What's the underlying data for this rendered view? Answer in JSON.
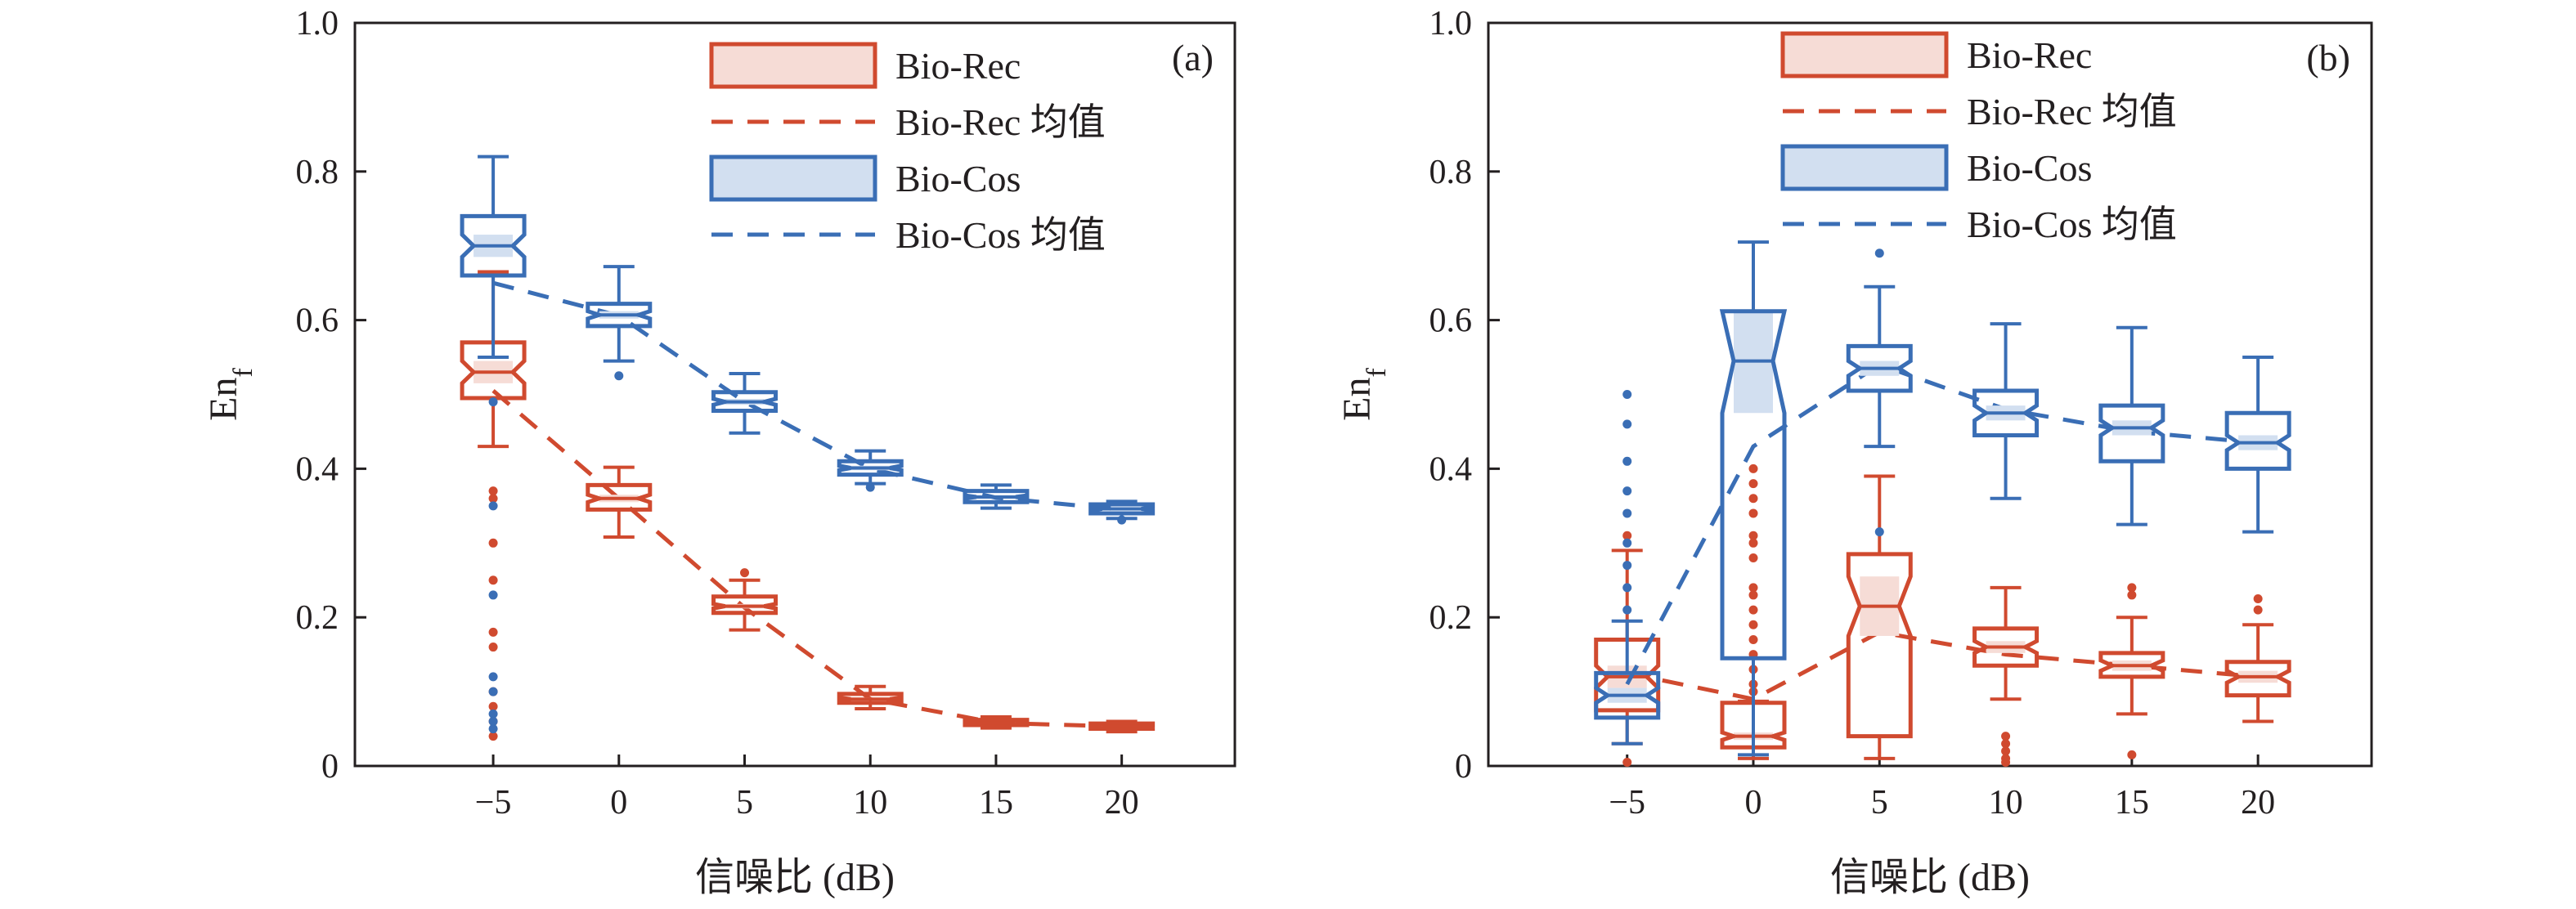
{
  "colors": {
    "rec": "#d04a2f",
    "rec_fill": "#f6dcd6",
    "cos": "#3a6eb5",
    "cos_fill": "#d2dff0",
    "axis": "#231f20"
  },
  "chart_data": [
    {
      "type": "box",
      "panel_label": "(a)",
      "xlabel": "信噪比 (dB)",
      "ylabel": "En",
      "ylabel_sub": "f",
      "xlim": [
        -10.5,
        24.5
      ],
      "ylim": [
        0,
        1.0
      ],
      "xticks": [
        "−5",
        "0",
        "5",
        "10",
        "15",
        "20"
      ],
      "yticks": [
        "0",
        "0.2",
        "0.4",
        "0.6",
        "0.8",
        "1.0"
      ],
      "legend": [
        "Bio-Rec",
        "Bio-Rec 均值",
        "Bio-Cos",
        "Bio-Cos 均值"
      ],
      "legend_position": "top-right",
      "series": [
        {
          "name": "Bio-Rec",
          "color_key": "rec",
          "boxes": [
            {
              "x": -5,
              "q1": 0.495,
              "median": 0.53,
              "q3": 0.57,
              "wlo": 0.43,
              "whi": 0.665,
              "notch_lo": 0.515,
              "notch_hi": 0.545,
              "outliers": [
                0.37,
                0.36,
                0.3,
                0.25,
                0.18,
                0.16,
                0.1,
                0.08,
                0.06,
                0.04
              ]
            },
            {
              "x": 0,
              "q1": 0.345,
              "median": 0.36,
              "q3": 0.378,
              "wlo": 0.308,
              "whi": 0.402,
              "notch_lo": 0.355,
              "notch_hi": 0.365,
              "outliers": []
            },
            {
              "x": 5,
              "q1": 0.206,
              "median": 0.215,
              "q3": 0.228,
              "wlo": 0.183,
              "whi": 0.25,
              "notch_lo": 0.212,
              "notch_hi": 0.218,
              "outliers": [
                0.26
              ]
            },
            {
              "x": 10,
              "q1": 0.085,
              "median": 0.09,
              "q3": 0.097,
              "wlo": 0.077,
              "whi": 0.107,
              "notch_lo": 0.088,
              "notch_hi": 0.092,
              "outliers": []
            },
            {
              "x": 15,
              "q1": 0.055,
              "median": 0.058,
              "q3": 0.062,
              "wlo": 0.051,
              "whi": 0.066,
              "notch_lo": 0.057,
              "notch_hi": 0.059,
              "outliers": []
            },
            {
              "x": 20,
              "q1": 0.05,
              "median": 0.053,
              "q3": 0.057,
              "wlo": 0.046,
              "whi": 0.06,
              "notch_lo": 0.052,
              "notch_hi": 0.054,
              "outliers": []
            }
          ],
          "mean": [
            0.505,
            0.36,
            0.213,
            0.09,
            0.058,
            0.053
          ]
        },
        {
          "name": "Bio-Cos",
          "color_key": "cos",
          "boxes": [
            {
              "x": -5,
              "q1": 0.66,
              "median": 0.7,
              "q3": 0.74,
              "wlo": 0.55,
              "whi": 0.82,
              "notch_lo": 0.685,
              "notch_hi": 0.715,
              "outliers": [
                0.49,
                0.35,
                0.23,
                0.12,
                0.1,
                0.07,
                0.06,
                0.05
              ]
            },
            {
              "x": 0,
              "q1": 0.592,
              "median": 0.607,
              "q3": 0.622,
              "wlo": 0.545,
              "whi": 0.672,
              "notch_lo": 0.602,
              "notch_hi": 0.612,
              "outliers": [
                0.525
              ]
            },
            {
              "x": 5,
              "q1": 0.478,
              "median": 0.49,
              "q3": 0.503,
              "wlo": 0.448,
              "whi": 0.528,
              "notch_lo": 0.486,
              "notch_hi": 0.494,
              "outliers": []
            },
            {
              "x": 10,
              "q1": 0.392,
              "median": 0.401,
              "q3": 0.41,
              "wlo": 0.38,
              "whi": 0.424,
              "notch_lo": 0.398,
              "notch_hi": 0.404,
              "outliers": [
                0.375
              ]
            },
            {
              "x": 15,
              "q1": 0.355,
              "median": 0.362,
              "q3": 0.37,
              "wlo": 0.347,
              "whi": 0.378,
              "notch_lo": 0.36,
              "notch_hi": 0.364,
              "outliers": []
            },
            {
              "x": 20,
              "q1": 0.34,
              "median": 0.346,
              "q3": 0.352,
              "wlo": 0.333,
              "whi": 0.356,
              "notch_lo": 0.344,
              "notch_hi": 0.348,
              "outliers": [
                0.331
              ]
            }
          ],
          "mean": [
            0.65,
            0.606,
            0.49,
            0.4,
            0.361,
            0.345
          ]
        }
      ]
    },
    {
      "type": "box",
      "panel_label": "(b)",
      "xlabel": "信噪比 (dB)",
      "ylabel": "En",
      "ylabel_sub": "f",
      "xlim": [
        -10.5,
        24.5
      ],
      "ylim": [
        0,
        1.0
      ],
      "xticks": [
        "−5",
        "0",
        "5",
        "10",
        "15",
        "20"
      ],
      "yticks": [
        "0",
        "0.2",
        "0.4",
        "0.6",
        "0.8",
        "1.0"
      ],
      "legend": [
        "Bio-Rec",
        "Bio-Rec 均值",
        "Bio-Cos",
        "Bio-Cos 均值"
      ],
      "legend_position": "top-right",
      "series": [
        {
          "name": "Bio-Rec",
          "color_key": "rec",
          "boxes": [
            {
              "x": -5,
              "q1": 0.075,
              "median": 0.12,
              "q3": 0.17,
              "wlo": 0.03,
              "whi": 0.29,
              "notch_lo": 0.105,
              "notch_hi": 0.135,
              "outliers": [
                0.31,
                0.005
              ]
            },
            {
              "x": 0,
              "q1": 0.025,
              "median": 0.04,
              "q3": 0.085,
              "wlo": 0.01,
              "whi": 0.087,
              "notch_lo": 0.035,
              "notch_hi": 0.045,
              "outliers": [
                0.4,
                0.38,
                0.36,
                0.34,
                0.31,
                0.3,
                0.28,
                0.24,
                0.23,
                0.21,
                0.19,
                0.17,
                0.15,
                0.13,
                0.11,
                0.1
              ]
            },
            {
              "x": 5,
              "q1": 0.04,
              "median": 0.215,
              "q3": 0.285,
              "wlo": 0.01,
              "whi": 0.39,
              "notch_lo": 0.175,
              "notch_hi": 0.255,
              "outliers": []
            },
            {
              "x": 10,
              "q1": 0.135,
              "median": 0.16,
              "q3": 0.185,
              "wlo": 0.09,
              "whi": 0.24,
              "notch_lo": 0.152,
              "notch_hi": 0.168,
              "outliers": [
                0.04,
                0.03,
                0.02,
                0.01,
                0.005
              ]
            },
            {
              "x": 15,
              "q1": 0.12,
              "median": 0.135,
              "q3": 0.152,
              "wlo": 0.07,
              "whi": 0.2,
              "notch_lo": 0.128,
              "notch_hi": 0.142,
              "outliers": [
                0.24,
                0.23,
                0.015
              ]
            },
            {
              "x": 20,
              "q1": 0.095,
              "median": 0.12,
              "q3": 0.14,
              "wlo": 0.06,
              "whi": 0.19,
              "notch_lo": 0.112,
              "notch_hi": 0.128,
              "outliers": [
                0.225,
                0.21
              ]
            }
          ],
          "mean": [
            0.125,
            0.09,
            0.18,
            0.15,
            0.135,
            0.12
          ]
        },
        {
          "name": "Bio-Cos",
          "color_key": "cos",
          "boxes": [
            {
              "x": -5,
              "q1": 0.065,
              "median": 0.095,
              "q3": 0.125,
              "wlo": 0.03,
              "whi": 0.195,
              "notch_lo": 0.085,
              "notch_hi": 0.105,
              "outliers": [
                0.5,
                0.46,
                0.41,
                0.37,
                0.34,
                0.3,
                0.27,
                0.24,
                0.21
              ]
            },
            {
              "x": 0,
              "q1": 0.145,
              "median": 0.545,
              "q3": 0.612,
              "wlo": 0.015,
              "whi": 0.705,
              "notch_lo": 0.475,
              "notch_hi": 0.612,
              "outliers": []
            },
            {
              "x": 5,
              "q1": 0.505,
              "median": 0.535,
              "q3": 0.565,
              "wlo": 0.43,
              "whi": 0.645,
              "notch_lo": 0.525,
              "notch_hi": 0.545,
              "outliers": [
                0.69,
                0.315
              ]
            },
            {
              "x": 10,
              "q1": 0.445,
              "median": 0.475,
              "q3": 0.505,
              "wlo": 0.36,
              "whi": 0.595,
              "notch_lo": 0.465,
              "notch_hi": 0.485,
              "outliers": []
            },
            {
              "x": 15,
              "q1": 0.41,
              "median": 0.455,
              "q3": 0.485,
              "wlo": 0.325,
              "whi": 0.59,
              "notch_lo": 0.445,
              "notch_hi": 0.465,
              "outliers": []
            },
            {
              "x": 20,
              "q1": 0.4,
              "median": 0.435,
              "q3": 0.475,
              "wlo": 0.315,
              "whi": 0.55,
              "notch_lo": 0.425,
              "notch_hi": 0.445,
              "outliers": []
            }
          ],
          "mean": [
            0.11,
            0.43,
            0.54,
            0.48,
            0.45,
            0.435
          ]
        }
      ]
    }
  ]
}
